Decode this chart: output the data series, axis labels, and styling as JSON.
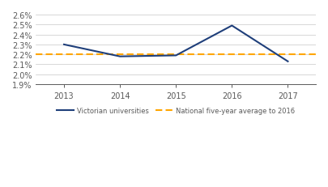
{
  "years": [
    2013,
    2014,
    2015,
    2016,
    2017
  ],
  "victorian_values": [
    0.023,
    0.0218,
    0.0219,
    0.0249,
    0.0213
  ],
  "national_average": 0.022,
  "ylim": [
    0.019,
    0.026
  ],
  "yticks": [
    0.019,
    0.02,
    0.021,
    0.022,
    0.023,
    0.024,
    0.025,
    0.026
  ],
  "line_color": "#1F3F7A",
  "dashed_color": "#FFA500",
  "legend_label_vic": "Victorian universities",
  "legend_label_nat": "National five-year average to 2016",
  "grid_color": "#C8C8C8",
  "background_color": "#FFFFFF",
  "tick_label_color": "#595959"
}
